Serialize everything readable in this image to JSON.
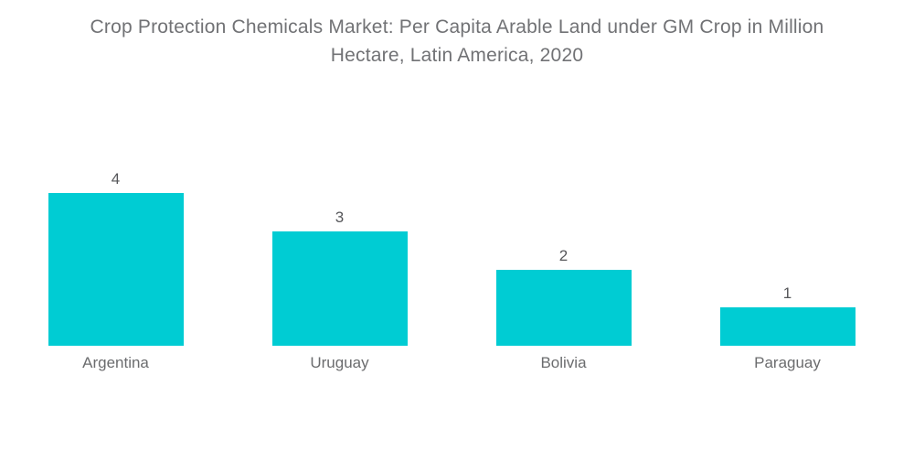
{
  "header": {
    "title_lines": [
      "Crop Protection Chemicals Market: Per Capita Arable Land under GM Crop in Million",
      "Hectare, Latin America, 2020"
    ]
  },
  "chart_data": {
    "type": "bar",
    "title": "Crop Protection Chemicals Market: Per Capita Arable Land under GM Crop in Million Hectare, Latin America, 2020",
    "categories": [
      "Argentina",
      "Uruguay",
      "Bolivia",
      "Paraguay"
    ],
    "values": [
      4,
      3,
      2,
      1
    ],
    "xlabel": "",
    "ylabel": "",
    "ylim": [
      0,
      4
    ],
    "grid": false,
    "legend": false,
    "value_labels_shown": true,
    "orientation": "vertical",
    "colors": {
      "bar": "#00CCD3",
      "title_text": "#717275",
      "value_label_text": "#56575A",
      "category_label_text": "#6B6C6E",
      "background": "#FFFFFF"
    }
  }
}
